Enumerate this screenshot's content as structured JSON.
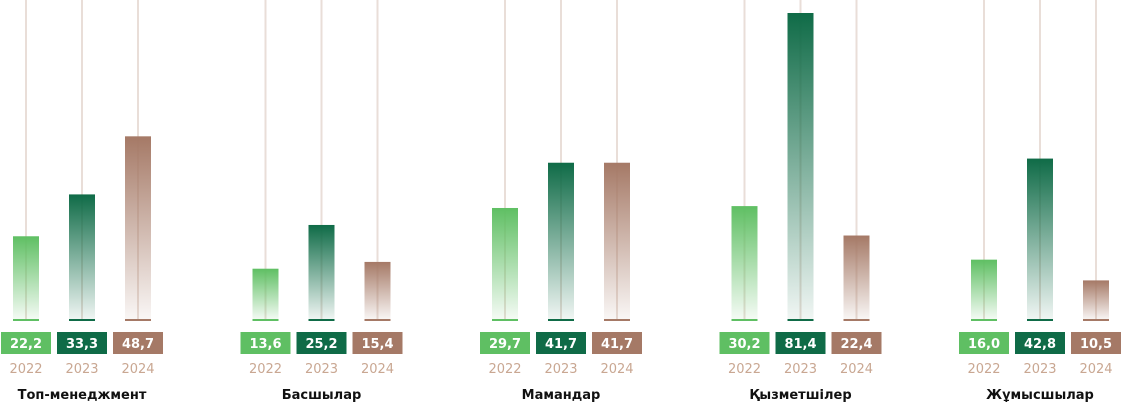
{
  "chart_data": {
    "type": "bar",
    "groups": [
      "Топ-менеджмент",
      "Басшылар",
      "Мамандар",
      "Қызметшілер",
      "Жұмысшылар"
    ],
    "years": [
      "2022",
      "2023",
      "2024"
    ],
    "series": [
      {
        "year": "2022",
        "color": "#5fbf63",
        "values": [
          22.2,
          13.6,
          29.7,
          30.2,
          16.0
        ],
        "labels": [
          "22,2",
          "13,6",
          "29,7",
          "30,2",
          "16,0"
        ]
      },
      {
        "year": "2023",
        "color": "#0f6b47",
        "values": [
          33.3,
          25.2,
          41.7,
          81.4,
          42.8
        ],
        "labels": [
          "33,3",
          "25,2",
          "41,7",
          "81,4",
          "42,8"
        ]
      },
      {
        "year": "2024",
        "color": "#a57966",
        "values": [
          48.7,
          15.4,
          41.7,
          22.4,
          10.5
        ],
        "labels": [
          "48,7",
          "15,4",
          "41,7",
          "22,4",
          "10,5"
        ]
      }
    ],
    "ylim": [
      0,
      81.4
    ],
    "year_label_color": "#c9a792",
    "guide_line_color": "#e9ded8"
  }
}
